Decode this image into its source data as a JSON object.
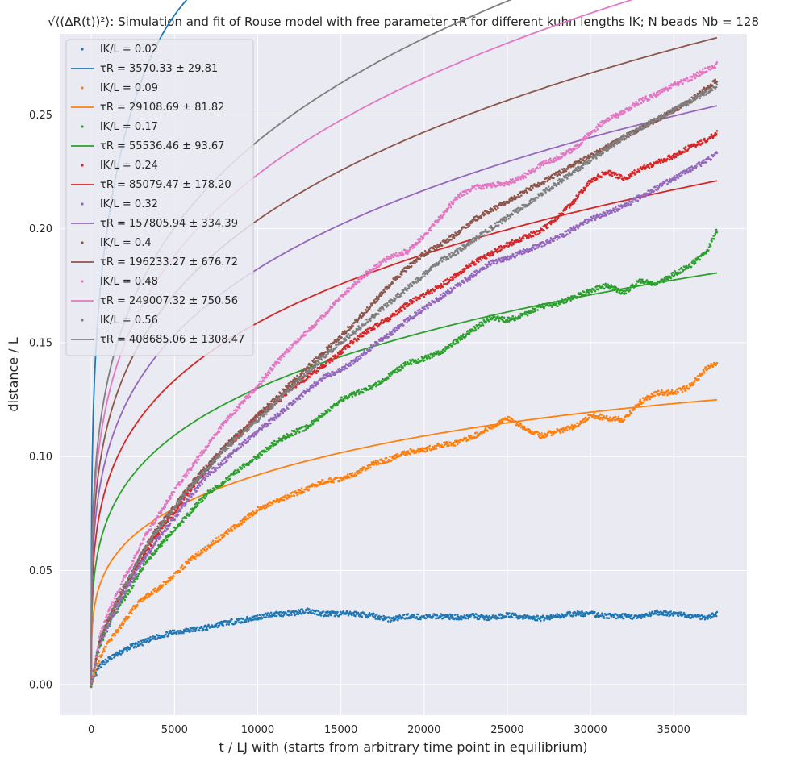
{
  "chart_data": {
    "type": "scatter",
    "title": "√⟨(ΔR(t))²⟩: Simulation and fit of Rouse model with free parameter τR for different kuhn lengths lK; N beads Nb = 128",
    "xlabel": "t / LJ with (starts from arbitrary time point in equilibrium)",
    "ylabel": "distance / L",
    "xlim": [
      -1900,
      39400
    ],
    "ylim": [
      -0.0135,
      0.2855
    ],
    "xticks": [
      0,
      5000,
      10000,
      15000,
      20000,
      25000,
      30000,
      35000
    ],
    "xtick_labels": [
      "0",
      "5000",
      "10000",
      "15000",
      "20000",
      "25000",
      "30000",
      "35000"
    ],
    "yticks": [
      0.0,
      0.05,
      0.1,
      0.15,
      0.2,
      0.25
    ],
    "ytick_labels": [
      "0.00",
      "0.05",
      "0.10",
      "0.15",
      "0.20",
      "0.25"
    ],
    "grid": true,
    "legend_position": "upper-left",
    "series": [
      {
        "name": "lK/L = 0.02",
        "fit_name": "τR = 3570.33 ± 29.81",
        "color": "#1f77b4",
        "x": [
          0,
          500,
          1000,
          1500,
          2000,
          2500,
          3000,
          4000,
          5000,
          6000,
          7000,
          8000,
          9000,
          10000,
          11000,
          12000,
          13000,
          14000,
          15000,
          16000,
          17000,
          18000,
          19000,
          20000,
          21000,
          22000,
          23000,
          24000,
          25000,
          26000,
          27000,
          28000,
          29000,
          30000,
          31000,
          32000,
          33000,
          34000,
          35000,
          36000,
          37000,
          37600
        ],
        "y": [
          0.0,
          0.008,
          0.011,
          0.013,
          0.015,
          0.017,
          0.018,
          0.021,
          0.023,
          0.024,
          0.025,
          0.027,
          0.028,
          0.0295,
          0.031,
          0.031,
          0.0325,
          0.031,
          0.031,
          0.031,
          0.03,
          0.0285,
          0.03,
          0.0295,
          0.03,
          0.0295,
          0.03,
          0.029,
          0.0305,
          0.0295,
          0.029,
          0.03,
          0.031,
          0.031,
          0.03,
          0.03,
          0.0295,
          0.0315,
          0.031,
          0.03,
          0.0295,
          0.031
        ],
        "fit": {
          "A": 0.0302,
          "tau": 3570.33
        }
      },
      {
        "name": "lK/L = 0.09",
        "fit_name": "τR = 29108.69 ± 81.82",
        "color": "#ff7f0e",
        "x": [
          0,
          500,
          1000,
          1500,
          2000,
          2500,
          3000,
          4000,
          5000,
          6000,
          7000,
          8000,
          9000,
          10000,
          11000,
          12000,
          13000,
          14000,
          15000,
          16000,
          17000,
          18000,
          19000,
          20000,
          21000,
          22000,
          23000,
          24000,
          25000,
          26000,
          27000,
          28000,
          29000,
          30000,
          31000,
          32000,
          33000,
          34000,
          35000,
          36000,
          37000,
          37600
        ],
        "y": [
          0.0,
          0.012,
          0.018,
          0.023,
          0.028,
          0.033,
          0.037,
          0.042,
          0.048,
          0.055,
          0.06,
          0.066,
          0.071,
          0.077,
          0.08,
          0.083,
          0.086,
          0.089,
          0.09,
          0.093,
          0.097,
          0.099,
          0.102,
          0.103,
          0.105,
          0.106,
          0.109,
          0.113,
          0.117,
          0.113,
          0.109,
          0.111,
          0.113,
          0.118,
          0.117,
          0.116,
          0.124,
          0.128,
          0.128,
          0.131,
          0.139,
          0.141
        ],
        "fit": {
          "A": 0.00069,
          "tau": 29108.69
        }
      },
      {
        "name": "lK/L = 0.17",
        "fit_name": "τR = 55536.46 ± 93.67",
        "color": "#2ca02c",
        "x": [
          0,
          500,
          1000,
          1500,
          2000,
          2500,
          3000,
          4000,
          5000,
          6000,
          7000,
          8000,
          9000,
          10000,
          11000,
          12000,
          13000,
          14000,
          15000,
          16000,
          17000,
          18000,
          19000,
          20000,
          21000,
          22000,
          23000,
          24000,
          25000,
          26000,
          27000,
          28000,
          29000,
          30000,
          31000,
          32000,
          33000,
          34000,
          35000,
          36000,
          37000,
          37600
        ],
        "y": [
          0.0,
          0.017,
          0.025,
          0.032,
          0.038,
          0.044,
          0.05,
          0.06,
          0.068,
          0.076,
          0.084,
          0.089,
          0.095,
          0.1,
          0.106,
          0.11,
          0.113,
          0.119,
          0.125,
          0.128,
          0.131,
          0.136,
          0.141,
          0.143,
          0.146,
          0.151,
          0.156,
          0.161,
          0.16,
          0.162,
          0.166,
          0.167,
          0.17,
          0.173,
          0.175,
          0.172,
          0.177,
          0.176,
          0.18,
          0.184,
          0.19,
          0.199
        ],
        "fit": {
          "A": 0.000999,
          "tau": 55536.46
        }
      },
      {
        "name": "lK/L = 0.24",
        "fit_name": "τR = 85079.47 ± 178.20",
        "color": "#d62728",
        "x": [
          0,
          500,
          1000,
          1500,
          2000,
          2500,
          3000,
          4000,
          5000,
          6000,
          7000,
          8000,
          9000,
          10000,
          11000,
          12000,
          13000,
          14000,
          15000,
          16000,
          17000,
          18000,
          19000,
          20000,
          21000,
          22000,
          23000,
          24000,
          25000,
          26000,
          27000,
          28000,
          29000,
          30000,
          31000,
          32000,
          33000,
          34000,
          35000,
          36000,
          37000,
          37600
        ],
        "y": [
          0.0,
          0.019,
          0.028,
          0.035,
          0.042,
          0.049,
          0.055,
          0.066,
          0.076,
          0.086,
          0.095,
          0.104,
          0.11,
          0.118,
          0.123,
          0.13,
          0.135,
          0.14,
          0.146,
          0.152,
          0.157,
          0.161,
          0.167,
          0.171,
          0.175,
          0.18,
          0.185,
          0.189,
          0.193,
          0.196,
          0.199,
          0.205,
          0.212,
          0.221,
          0.225,
          0.222,
          0.226,
          0.229,
          0.232,
          0.236,
          0.239,
          0.242
        ],
        "fit": {
          "A": 0.001203,
          "tau": 85079.47
        }
      },
      {
        "name": "lK/L = 0.32",
        "fit_name": "τR = 157805.94 ± 334.39",
        "color": "#9467bd",
        "x": [
          0,
          500,
          1000,
          1500,
          2000,
          2500,
          3000,
          4000,
          5000,
          6000,
          7000,
          8000,
          9000,
          10000,
          11000,
          12000,
          13000,
          14000,
          15000,
          16000,
          17000,
          18000,
          19000,
          20000,
          21000,
          22000,
          23000,
          24000,
          25000,
          26000,
          27000,
          28000,
          29000,
          30000,
          31000,
          32000,
          33000,
          34000,
          35000,
          36000,
          37000,
          37600
        ],
        "y": [
          0.0,
          0.018,
          0.026,
          0.033,
          0.04,
          0.047,
          0.053,
          0.064,
          0.073,
          0.083,
          0.092,
          0.098,
          0.105,
          0.111,
          0.117,
          0.123,
          0.129,
          0.135,
          0.138,
          0.143,
          0.149,
          0.154,
          0.16,
          0.165,
          0.17,
          0.175,
          0.18,
          0.185,
          0.187,
          0.19,
          0.193,
          0.196,
          0.2,
          0.204,
          0.207,
          0.21,
          0.214,
          0.218,
          0.222,
          0.226,
          0.23,
          0.233
        ],
        "fit": {
          "A": 0.001166,
          "tau": 157805.94
        }
      },
      {
        "name": "lK/L = 0.4",
        "fit_name": "τR = 196233.27 ± 676.72",
        "color": "#8c564b",
        "x": [
          0,
          500,
          1000,
          1500,
          2000,
          2500,
          3000,
          4000,
          5000,
          6000,
          7000,
          8000,
          9000,
          10000,
          11000,
          12000,
          13000,
          14000,
          15000,
          16000,
          17000,
          18000,
          19000,
          20000,
          21000,
          22000,
          23000,
          24000,
          25000,
          26000,
          27000,
          28000,
          29000,
          30000,
          31000,
          32000,
          33000,
          34000,
          35000,
          36000,
          37000,
          37600
        ],
        "y": [
          0.0,
          0.019,
          0.028,
          0.036,
          0.043,
          0.05,
          0.057,
          0.069,
          0.078,
          0.088,
          0.096,
          0.104,
          0.111,
          0.118,
          0.125,
          0.132,
          0.139,
          0.146,
          0.153,
          0.16,
          0.168,
          0.176,
          0.183,
          0.189,
          0.193,
          0.198,
          0.204,
          0.208,
          0.212,
          0.216,
          0.22,
          0.224,
          0.228,
          0.232,
          0.236,
          0.24,
          0.244,
          0.248,
          0.252,
          0.256,
          0.262,
          0.265
        ],
        "fit": {
          "A": 0.001306,
          "tau": 196233.27
        }
      },
      {
        "name": "lK/L = 0.48",
        "fit_name": "τR = 249007.32 ± 750.56",
        "color": "#e377c2",
        "x": [
          0,
          500,
          1000,
          1500,
          2000,
          2500,
          3000,
          4000,
          5000,
          6000,
          7000,
          8000,
          9000,
          10000,
          11000,
          12000,
          13000,
          14000,
          15000,
          16000,
          17000,
          18000,
          19000,
          20000,
          21000,
          22000,
          23000,
          24000,
          25000,
          26000,
          27000,
          28000,
          29000,
          30000,
          31000,
          32000,
          33000,
          34000,
          35000,
          36000,
          37000,
          37600
        ],
        "y": [
          0.0,
          0.021,
          0.031,
          0.039,
          0.047,
          0.054,
          0.062,
          0.074,
          0.085,
          0.095,
          0.105,
          0.115,
          0.123,
          0.131,
          0.14,
          0.148,
          0.155,
          0.162,
          0.17,
          0.177,
          0.183,
          0.188,
          0.19,
          0.197,
          0.205,
          0.214,
          0.218,
          0.219,
          0.22,
          0.223,
          0.228,
          0.231,
          0.235,
          0.242,
          0.248,
          0.251,
          0.256,
          0.259,
          0.263,
          0.266,
          0.27,
          0.272
        ],
        "fit": {
          "A": 0.001398,
          "tau": 249007.32
        }
      },
      {
        "name": "lK/L = 0.56",
        "fit_name": "τR = 408685.06 ± 1308.47",
        "color": "#7f7f7f",
        "x": [
          0,
          500,
          1000,
          1500,
          2000,
          2500,
          3000,
          4000,
          5000,
          6000,
          7000,
          8000,
          9000,
          10000,
          11000,
          12000,
          13000,
          14000,
          15000,
          16000,
          17000,
          18000,
          19000,
          20000,
          21000,
          22000,
          23000,
          24000,
          25000,
          26000,
          27000,
          28000,
          29000,
          30000,
          31000,
          32000,
          33000,
          34000,
          35000,
          36000,
          37000,
          37600
        ],
        "y": [
          0.0,
          0.019,
          0.028,
          0.036,
          0.043,
          0.05,
          0.057,
          0.068,
          0.078,
          0.087,
          0.095,
          0.103,
          0.11,
          0.116,
          0.123,
          0.13,
          0.137,
          0.144,
          0.15,
          0.156,
          0.162,
          0.168,
          0.174,
          0.18,
          0.186,
          0.19,
          0.195,
          0.2,
          0.205,
          0.21,
          0.215,
          0.22,
          0.225,
          0.23,
          0.235,
          0.24,
          0.244,
          0.248,
          0.252,
          0.256,
          0.26,
          0.263
        ],
        "fit": {
          "A": 0.001239,
          "tau": 408685.06
        }
      }
    ]
  }
}
